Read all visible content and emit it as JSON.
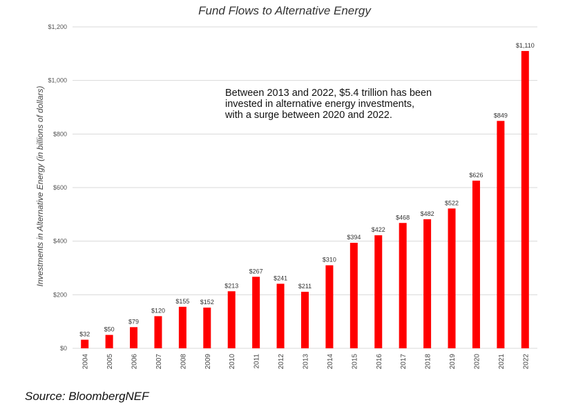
{
  "chart_data": {
    "type": "bar",
    "title": "Fund Flows to Alternative Energy",
    "ylabel": "Investments in Alternative Energy (in billions of dollars)",
    "xlabel": "",
    "categories": [
      "2004",
      "2005",
      "2006",
      "2007",
      "2008",
      "2009",
      "2010",
      "2011",
      "2012",
      "2013",
      "2014",
      "2015",
      "2016",
      "2017",
      "2018",
      "2019",
      "2020",
      "2021",
      "2022"
    ],
    "values": [
      32,
      50,
      79,
      120,
      155,
      152,
      213,
      267,
      241,
      211,
      310,
      394,
      422,
      468,
      482,
      522,
      626,
      849,
      1110
    ],
    "data_labels": [
      "$32",
      "$50",
      "$79",
      "$120",
      "$155",
      "$152",
      "$213",
      "$267",
      "$241",
      "$211",
      "$310",
      "$394",
      "$422",
      "$468",
      "$482",
      "$522",
      "$626",
      "$849",
      "$1,110"
    ],
    "ylim": [
      0,
      1200
    ],
    "yticks": [
      0,
      200,
      400,
      600,
      800,
      1000,
      1200
    ],
    "ytick_labels": [
      "$0",
      "$200",
      "$400",
      "$600",
      "$800",
      "$1,000",
      "$1,200"
    ],
    "grid": true,
    "bar_color": "#ff0000",
    "annotation": "Between 2013 and 2022, $5.4 trillion has been invested in alternative energy investments, with a surge between 2020 and 2022."
  },
  "source": "Source: BloombergNEF"
}
